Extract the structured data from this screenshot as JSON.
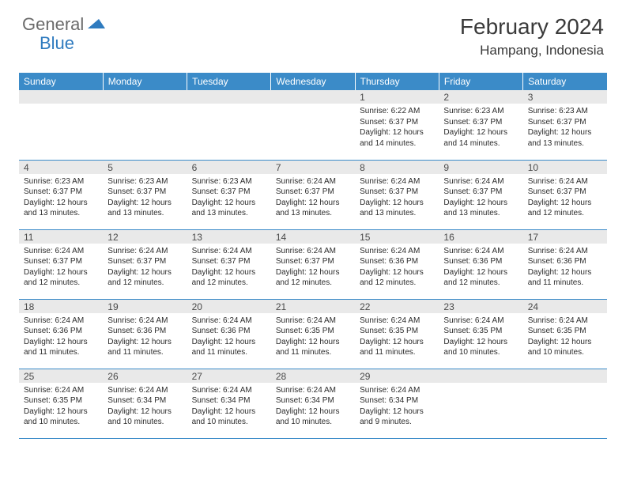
{
  "brand": {
    "part1": "General",
    "part2": "Blue"
  },
  "header": {
    "month": "February 2024",
    "location": "Hampang, Indonesia"
  },
  "colors": {
    "header_bg": "#3b8bc8",
    "header_fg": "#ffffff",
    "daynum_bg": "#e9e9e9",
    "text": "#2b2b2b",
    "rule": "#3b8bc8",
    "brand_gray": "#6b6b6b",
    "brand_blue": "#2f7bbf"
  },
  "fonts": {
    "month_title_pt": 28,
    "location_pt": 17,
    "weekday_pt": 12,
    "daynum_pt": 12,
    "body_pt": 10
  },
  "weekdays": [
    "Sunday",
    "Monday",
    "Tuesday",
    "Wednesday",
    "Thursday",
    "Friday",
    "Saturday"
  ],
  "weeks": [
    [
      null,
      null,
      null,
      null,
      {
        "n": "1",
        "sr": "Sunrise: 6:22 AM",
        "ss": "Sunset: 6:37 PM",
        "dl": "Daylight: 12 hours and 14 minutes."
      },
      {
        "n": "2",
        "sr": "Sunrise: 6:23 AM",
        "ss": "Sunset: 6:37 PM",
        "dl": "Daylight: 12 hours and 14 minutes."
      },
      {
        "n": "3",
        "sr": "Sunrise: 6:23 AM",
        "ss": "Sunset: 6:37 PM",
        "dl": "Daylight: 12 hours and 13 minutes."
      }
    ],
    [
      {
        "n": "4",
        "sr": "Sunrise: 6:23 AM",
        "ss": "Sunset: 6:37 PM",
        "dl": "Daylight: 12 hours and 13 minutes."
      },
      {
        "n": "5",
        "sr": "Sunrise: 6:23 AM",
        "ss": "Sunset: 6:37 PM",
        "dl": "Daylight: 12 hours and 13 minutes."
      },
      {
        "n": "6",
        "sr": "Sunrise: 6:23 AM",
        "ss": "Sunset: 6:37 PM",
        "dl": "Daylight: 12 hours and 13 minutes."
      },
      {
        "n": "7",
        "sr": "Sunrise: 6:24 AM",
        "ss": "Sunset: 6:37 PM",
        "dl": "Daylight: 12 hours and 13 minutes."
      },
      {
        "n": "8",
        "sr": "Sunrise: 6:24 AM",
        "ss": "Sunset: 6:37 PM",
        "dl": "Daylight: 12 hours and 13 minutes."
      },
      {
        "n": "9",
        "sr": "Sunrise: 6:24 AM",
        "ss": "Sunset: 6:37 PM",
        "dl": "Daylight: 12 hours and 13 minutes."
      },
      {
        "n": "10",
        "sr": "Sunrise: 6:24 AM",
        "ss": "Sunset: 6:37 PM",
        "dl": "Daylight: 12 hours and 12 minutes."
      }
    ],
    [
      {
        "n": "11",
        "sr": "Sunrise: 6:24 AM",
        "ss": "Sunset: 6:37 PM",
        "dl": "Daylight: 12 hours and 12 minutes."
      },
      {
        "n": "12",
        "sr": "Sunrise: 6:24 AM",
        "ss": "Sunset: 6:37 PM",
        "dl": "Daylight: 12 hours and 12 minutes."
      },
      {
        "n": "13",
        "sr": "Sunrise: 6:24 AM",
        "ss": "Sunset: 6:37 PM",
        "dl": "Daylight: 12 hours and 12 minutes."
      },
      {
        "n": "14",
        "sr": "Sunrise: 6:24 AM",
        "ss": "Sunset: 6:37 PM",
        "dl": "Daylight: 12 hours and 12 minutes."
      },
      {
        "n": "15",
        "sr": "Sunrise: 6:24 AM",
        "ss": "Sunset: 6:36 PM",
        "dl": "Daylight: 12 hours and 12 minutes."
      },
      {
        "n": "16",
        "sr": "Sunrise: 6:24 AM",
        "ss": "Sunset: 6:36 PM",
        "dl": "Daylight: 12 hours and 12 minutes."
      },
      {
        "n": "17",
        "sr": "Sunrise: 6:24 AM",
        "ss": "Sunset: 6:36 PM",
        "dl": "Daylight: 12 hours and 11 minutes."
      }
    ],
    [
      {
        "n": "18",
        "sr": "Sunrise: 6:24 AM",
        "ss": "Sunset: 6:36 PM",
        "dl": "Daylight: 12 hours and 11 minutes."
      },
      {
        "n": "19",
        "sr": "Sunrise: 6:24 AM",
        "ss": "Sunset: 6:36 PM",
        "dl": "Daylight: 12 hours and 11 minutes."
      },
      {
        "n": "20",
        "sr": "Sunrise: 6:24 AM",
        "ss": "Sunset: 6:36 PM",
        "dl": "Daylight: 12 hours and 11 minutes."
      },
      {
        "n": "21",
        "sr": "Sunrise: 6:24 AM",
        "ss": "Sunset: 6:35 PM",
        "dl": "Daylight: 12 hours and 11 minutes."
      },
      {
        "n": "22",
        "sr": "Sunrise: 6:24 AM",
        "ss": "Sunset: 6:35 PM",
        "dl": "Daylight: 12 hours and 11 minutes."
      },
      {
        "n": "23",
        "sr": "Sunrise: 6:24 AM",
        "ss": "Sunset: 6:35 PM",
        "dl": "Daylight: 12 hours and 10 minutes."
      },
      {
        "n": "24",
        "sr": "Sunrise: 6:24 AM",
        "ss": "Sunset: 6:35 PM",
        "dl": "Daylight: 12 hours and 10 minutes."
      }
    ],
    [
      {
        "n": "25",
        "sr": "Sunrise: 6:24 AM",
        "ss": "Sunset: 6:35 PM",
        "dl": "Daylight: 12 hours and 10 minutes."
      },
      {
        "n": "26",
        "sr": "Sunrise: 6:24 AM",
        "ss": "Sunset: 6:34 PM",
        "dl": "Daylight: 12 hours and 10 minutes."
      },
      {
        "n": "27",
        "sr": "Sunrise: 6:24 AM",
        "ss": "Sunset: 6:34 PM",
        "dl": "Daylight: 12 hours and 10 minutes."
      },
      {
        "n": "28",
        "sr": "Sunrise: 6:24 AM",
        "ss": "Sunset: 6:34 PM",
        "dl": "Daylight: 12 hours and 10 minutes."
      },
      {
        "n": "29",
        "sr": "Sunrise: 6:24 AM",
        "ss": "Sunset: 6:34 PM",
        "dl": "Daylight: 12 hours and 9 minutes."
      },
      null,
      null
    ]
  ]
}
